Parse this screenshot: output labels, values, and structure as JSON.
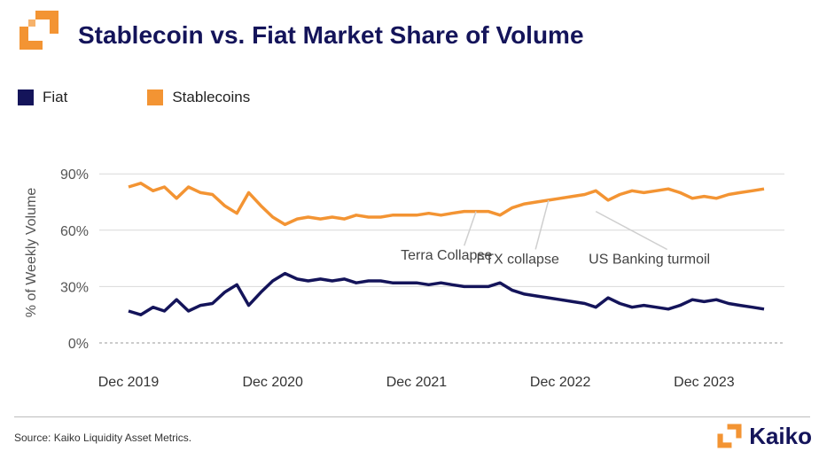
{
  "header": {
    "title": "Stablecoin vs. Fiat Market Share of Volume"
  },
  "footer": {
    "source": "Source: Kaiko Liquidity Asset Metrics.",
    "brand": "Kaiko"
  },
  "colors": {
    "fiat": "#14145a",
    "stablecoins": "#f39433",
    "logo_orange": "#f39433"
  },
  "chart_data": {
    "type": "line",
    "title": "Stablecoin vs. Fiat Market Share of Volume",
    "ylabel": "% of Weekly Volume",
    "xlabel": "",
    "ylim": [
      0,
      100
    ],
    "xlim": [
      "2019-12-01",
      "2024-05-01"
    ],
    "x_ticks": [
      "Dec 2019",
      "Dec 2020",
      "Dec 2021",
      "Dec 2022",
      "Dec 2023"
    ],
    "y_ticks": [
      "0%",
      "30%",
      "60%",
      "90%"
    ],
    "y_tick_values": [
      0,
      30,
      60,
      90
    ],
    "legend_position": "top-left",
    "grid": "horizontal",
    "series": [
      {
        "name": "Fiat",
        "color": "#14145a",
        "points": [
          [
            "2019-12-01",
            17
          ],
          [
            "2020-01-01",
            15
          ],
          [
            "2020-02-01",
            19
          ],
          [
            "2020-03-01",
            17
          ],
          [
            "2020-04-01",
            23
          ],
          [
            "2020-05-01",
            17
          ],
          [
            "2020-06-01",
            20
          ],
          [
            "2020-07-01",
            21
          ],
          [
            "2020-08-01",
            27
          ],
          [
            "2020-09-01",
            31
          ],
          [
            "2020-10-01",
            20
          ],
          [
            "2020-11-01",
            27
          ],
          [
            "2020-12-01",
            33
          ],
          [
            "2021-01-01",
            37
          ],
          [
            "2021-02-01",
            34
          ],
          [
            "2021-03-01",
            33
          ],
          [
            "2021-04-01",
            34
          ],
          [
            "2021-05-01",
            33
          ],
          [
            "2021-06-01",
            34
          ],
          [
            "2021-07-01",
            32
          ],
          [
            "2021-08-01",
            33
          ],
          [
            "2021-09-01",
            33
          ],
          [
            "2021-10-01",
            32
          ],
          [
            "2021-11-01",
            32
          ],
          [
            "2021-12-01",
            32
          ],
          [
            "2022-01-01",
            31
          ],
          [
            "2022-02-01",
            32
          ],
          [
            "2022-03-01",
            31
          ],
          [
            "2022-04-01",
            30
          ],
          [
            "2022-05-01",
            30
          ],
          [
            "2022-06-01",
            30
          ],
          [
            "2022-07-01",
            32
          ],
          [
            "2022-08-01",
            28
          ],
          [
            "2022-09-01",
            26
          ],
          [
            "2022-10-01",
            25
          ],
          [
            "2022-11-01",
            24
          ],
          [
            "2022-12-01",
            23
          ],
          [
            "2023-01-01",
            22
          ],
          [
            "2023-02-01",
            21
          ],
          [
            "2023-03-01",
            19
          ],
          [
            "2023-04-01",
            24
          ],
          [
            "2023-05-01",
            21
          ],
          [
            "2023-06-01",
            19
          ],
          [
            "2023-07-01",
            20
          ],
          [
            "2023-08-01",
            19
          ],
          [
            "2023-09-01",
            18
          ],
          [
            "2023-10-01",
            20
          ],
          [
            "2023-11-01",
            23
          ],
          [
            "2023-12-01",
            22
          ],
          [
            "2024-01-01",
            23
          ],
          [
            "2024-02-01",
            21
          ],
          [
            "2024-03-01",
            20
          ],
          [
            "2024-04-01",
            19
          ],
          [
            "2024-05-01",
            18
          ]
        ]
      },
      {
        "name": "Stablecoins",
        "color": "#f39433",
        "points": [
          [
            "2019-12-01",
            83
          ],
          [
            "2020-01-01",
            85
          ],
          [
            "2020-02-01",
            81
          ],
          [
            "2020-03-01",
            83
          ],
          [
            "2020-04-01",
            77
          ],
          [
            "2020-05-01",
            83
          ],
          [
            "2020-06-01",
            80
          ],
          [
            "2020-07-01",
            79
          ],
          [
            "2020-08-01",
            73
          ],
          [
            "2020-09-01",
            69
          ],
          [
            "2020-10-01",
            80
          ],
          [
            "2020-11-01",
            73
          ],
          [
            "2020-12-01",
            67
          ],
          [
            "2021-01-01",
            63
          ],
          [
            "2021-02-01",
            66
          ],
          [
            "2021-03-01",
            67
          ],
          [
            "2021-04-01",
            66
          ],
          [
            "2021-05-01",
            67
          ],
          [
            "2021-06-01",
            66
          ],
          [
            "2021-07-01",
            68
          ],
          [
            "2021-08-01",
            67
          ],
          [
            "2021-09-01",
            67
          ],
          [
            "2021-10-01",
            68
          ],
          [
            "2021-11-01",
            68
          ],
          [
            "2021-12-01",
            68
          ],
          [
            "2022-01-01",
            69
          ],
          [
            "2022-02-01",
            68
          ],
          [
            "2022-03-01",
            69
          ],
          [
            "2022-04-01",
            70
          ],
          [
            "2022-05-01",
            70
          ],
          [
            "2022-06-01",
            70
          ],
          [
            "2022-07-01",
            68
          ],
          [
            "2022-08-01",
            72
          ],
          [
            "2022-09-01",
            74
          ],
          [
            "2022-10-01",
            75
          ],
          [
            "2022-11-01",
            76
          ],
          [
            "2022-12-01",
            77
          ],
          [
            "2023-01-01",
            78
          ],
          [
            "2023-02-01",
            79
          ],
          [
            "2023-03-01",
            81
          ],
          [
            "2023-04-01",
            76
          ],
          [
            "2023-05-01",
            79
          ],
          [
            "2023-06-01",
            81
          ],
          [
            "2023-07-01",
            80
          ],
          [
            "2023-08-01",
            81
          ],
          [
            "2023-09-01",
            82
          ],
          [
            "2023-10-01",
            80
          ],
          [
            "2023-11-01",
            77
          ],
          [
            "2023-12-01",
            78
          ],
          [
            "2024-01-01",
            77
          ],
          [
            "2024-02-01",
            79
          ],
          [
            "2024-03-01",
            80
          ],
          [
            "2024-04-01",
            81
          ],
          [
            "2024-05-01",
            82
          ]
        ]
      }
    ],
    "annotations": [
      {
        "text": "Terra Collapse",
        "x": "2022-05-01",
        "y": 70,
        "label_x": "2022-02-15",
        "label_y": 48
      },
      {
        "text": "FTX collapse",
        "x": "2022-11-01",
        "y": 76,
        "label_x": "2022-08-15",
        "label_y": 46
      },
      {
        "text": "US Banking turmoil",
        "x": "2023-03-01",
        "y": 70,
        "label_x": "2023-07-15",
        "label_y": 46
      }
    ]
  }
}
